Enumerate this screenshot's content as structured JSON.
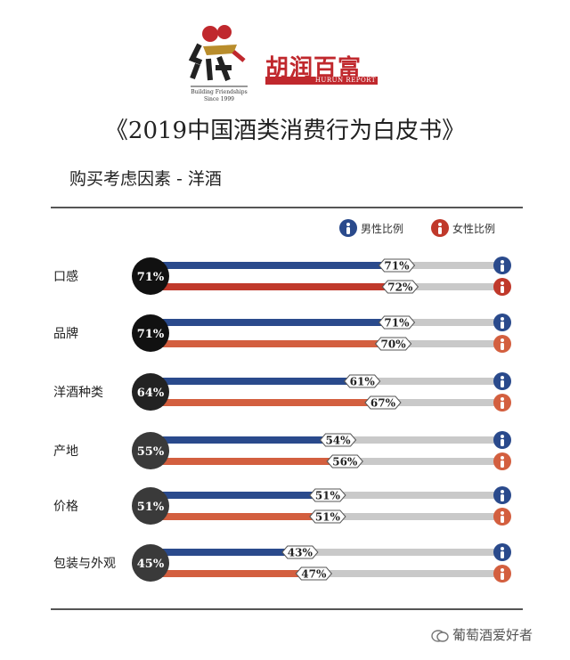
{
  "brand": {
    "name": "胡润百富",
    "sub": "HURUN REPORT",
    "logo_tagline": "Building Friendships",
    "logo_since": "Since 1999"
  },
  "title": "《2019中国酒类消费行为白皮书》",
  "colors": {
    "male": "#2a4a8c",
    "female": "#c0392b",
    "female_light": "#d35f3f",
    "track": "#c9c9c9"
  },
  "chart_data": {
    "type": "bar",
    "title": "购买考虑因素 - 洋酒",
    "categories": [
      "口感",
      "品牌",
      "洋酒种类",
      "产地",
      "价格",
      "包装与外观"
    ],
    "overall": [
      "71%",
      "71%",
      "64%",
      "55%",
      "51%",
      "45%"
    ],
    "overall_values": [
      71,
      71,
      64,
      55,
      51,
      45
    ],
    "series": [
      {
        "name": "男性比例",
        "values": [
          71,
          71,
          61,
          54,
          51,
          43
        ]
      },
      {
        "name": "女性比例",
        "values": [
          72,
          70,
          67,
          56,
          51,
          47
        ]
      }
    ],
    "ylim": [
      0,
      100
    ],
    "legend_position": "top-right"
  },
  "watermark": "葡萄酒爱好者"
}
